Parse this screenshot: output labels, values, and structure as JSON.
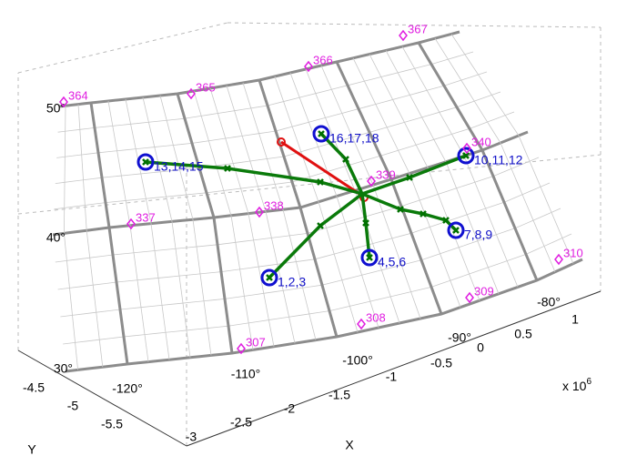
{
  "stations": [
    "364",
    "365",
    "366",
    "367",
    "340",
    "339",
    "338",
    "337",
    "310",
    "309",
    "308",
    "307"
  ],
  "clusters": [
    "16,17,18",
    "13,14,15",
    "10,11,12",
    "7,8,9",
    "4,5,6",
    "1,2,3"
  ],
  "lat_ticks": [
    "50°",
    "40°",
    "30°"
  ],
  "lon_ticks": [
    "-120°",
    "-110°",
    "-100°",
    "-90°",
    "-80°"
  ],
  "x_ticks": [
    "-3",
    "-2.5",
    "-2",
    "-1.5",
    "-1",
    "-0.5",
    "0",
    "0.5",
    "1"
  ],
  "y_ticks": [
    "-4.5",
    "-5",
    "-5.5"
  ],
  "x_label": "X",
  "y_label": "Y",
  "x_scale": {
    "multiplier": "x 10",
    "exponent": "6"
  }
}
